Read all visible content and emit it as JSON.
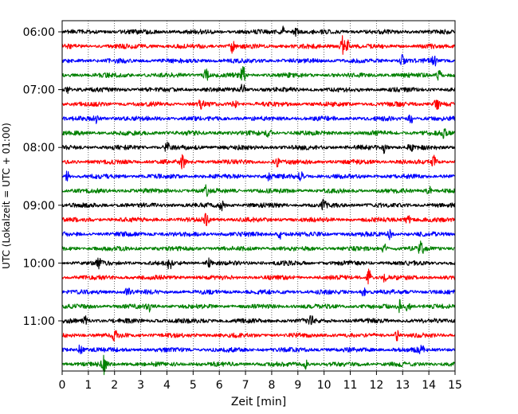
{
  "chart_data": {
    "type": "line",
    "title": "",
    "xlabel": "Zeit  [min]",
    "ylabel": "UTC (Lokalzeit = UTC + 01:00)",
    "xlim": [
      0,
      15
    ],
    "x_ticks": [
      "0",
      "1",
      "2",
      "3",
      "4",
      "5",
      "6",
      "7",
      "8",
      "9",
      "10",
      "11",
      "12",
      "13",
      "14",
      "15"
    ],
    "y_ticks": [
      "06:00",
      "07:00",
      "08:00",
      "09:00",
      "10:00",
      "11:00"
    ],
    "grid": "vertical dotted lines at each minute",
    "trace_minutes": 15,
    "traces": [
      {
        "start": "06:00",
        "color": "#000000",
        "events": [
          {
            "t": 8.4,
            "amp": 0.5
          },
          {
            "t": 8.9,
            "amp": 0.45
          }
        ]
      },
      {
        "start": "06:15",
        "color": "#ff0000",
        "events": [
          {
            "t": 6.5,
            "amp": 0.55
          },
          {
            "t": 10.7,
            "amp": 1.0
          },
          {
            "t": 10.9,
            "amp": 0.5
          }
        ]
      },
      {
        "start": "06:30",
        "color": "#0000ff",
        "events": [
          {
            "t": 13.0,
            "amp": 0.45
          },
          {
            "t": 14.2,
            "amp": 0.4
          }
        ]
      },
      {
        "start": "06:45",
        "color": "#008000",
        "events": [
          {
            "t": 5.5,
            "amp": 0.55
          },
          {
            "t": 6.9,
            "amp": 0.75
          },
          {
            "t": 14.4,
            "amp": 0.5
          }
        ]
      },
      {
        "start": "07:00",
        "color": "#000000",
        "events": [
          {
            "t": 0.2,
            "amp": 0.4
          },
          {
            "t": 6.9,
            "amp": 0.5
          }
        ]
      },
      {
        "start": "07:15",
        "color": "#ff0000",
        "events": [
          {
            "t": 5.3,
            "amp": 0.5
          },
          {
            "t": 6.6,
            "amp": 0.45
          },
          {
            "t": 14.3,
            "amp": 0.5
          }
        ]
      },
      {
        "start": "07:30",
        "color": "#0000ff",
        "events": [
          {
            "t": 1.3,
            "amp": 0.4
          },
          {
            "t": 13.3,
            "amp": 0.4
          }
        ]
      },
      {
        "start": "07:45",
        "color": "#008000",
        "events": [
          {
            "t": 7.9,
            "amp": 0.4
          },
          {
            "t": 14.6,
            "amp": 0.45
          }
        ]
      },
      {
        "start": "08:00",
        "color": "#000000",
        "events": [
          {
            "t": 4.0,
            "amp": 0.45
          },
          {
            "t": 12.3,
            "amp": 0.45
          },
          {
            "t": 13.3,
            "amp": 0.45
          }
        ]
      },
      {
        "start": "08:15",
        "color": "#ff0000",
        "events": [
          {
            "t": 4.6,
            "amp": 0.5
          },
          {
            "t": 8.2,
            "amp": 0.4
          },
          {
            "t": 14.2,
            "amp": 0.45
          }
        ]
      },
      {
        "start": "08:30",
        "color": "#0000ff",
        "events": [
          {
            "t": 0.2,
            "amp": 0.45
          },
          {
            "t": 7.9,
            "amp": 0.45
          },
          {
            "t": 9.1,
            "amp": 0.45
          }
        ]
      },
      {
        "start": "08:45",
        "color": "#008000",
        "events": [
          {
            "t": 5.5,
            "amp": 0.4
          },
          {
            "t": 14.0,
            "amp": 0.45
          }
        ]
      },
      {
        "start": "09:00",
        "color": "#000000",
        "events": [
          {
            "t": 6.1,
            "amp": 0.4
          },
          {
            "t": 10.0,
            "amp": 0.45
          }
        ]
      },
      {
        "start": "09:15",
        "color": "#ff0000",
        "events": [
          {
            "t": 5.5,
            "amp": 0.5
          },
          {
            "t": 13.2,
            "amp": 0.4
          }
        ]
      },
      {
        "start": "09:30",
        "color": "#0000ff",
        "events": [
          {
            "t": 8.3,
            "amp": 0.4
          },
          {
            "t": 12.5,
            "amp": 0.4
          }
        ]
      },
      {
        "start": "09:45",
        "color": "#008000",
        "events": [
          {
            "t": 12.3,
            "amp": 0.45
          },
          {
            "t": 13.7,
            "amp": 0.6
          }
        ]
      },
      {
        "start": "10:00",
        "color": "#000000",
        "events": [
          {
            "t": 1.4,
            "amp": 0.4
          },
          {
            "t": 4.1,
            "amp": 0.45
          },
          {
            "t": 5.6,
            "amp": 0.5
          }
        ]
      },
      {
        "start": "10:15",
        "color": "#ff0000",
        "events": [
          {
            "t": 11.7,
            "amp": 0.7
          },
          {
            "t": 12.3,
            "amp": 0.4
          }
        ]
      },
      {
        "start": "10:30",
        "color": "#0000ff",
        "events": [
          {
            "t": 2.5,
            "amp": 0.35
          },
          {
            "t": 11.5,
            "amp": 0.35
          }
        ]
      },
      {
        "start": "10:45",
        "color": "#008000",
        "events": [
          {
            "t": 3.3,
            "amp": 0.45
          },
          {
            "t": 12.9,
            "amp": 0.6
          },
          {
            "t": 13.2,
            "amp": 0.45
          }
        ]
      },
      {
        "start": "11:00",
        "color": "#000000",
        "events": [
          {
            "t": 0.9,
            "amp": 0.35
          },
          {
            "t": 9.5,
            "amp": 0.35
          }
        ]
      },
      {
        "start": "11:15",
        "color": "#ff0000",
        "events": [
          {
            "t": 2.0,
            "amp": 0.4
          },
          {
            "t": 12.8,
            "amp": 0.45
          }
        ]
      },
      {
        "start": "11:30",
        "color": "#0000ff",
        "events": [
          {
            "t": 0.7,
            "amp": 0.45
          },
          {
            "t": 13.7,
            "amp": 0.45
          }
        ]
      },
      {
        "start": "11:45",
        "color": "#008000",
        "events": [
          {
            "t": 1.6,
            "amp": 0.8
          },
          {
            "t": 9.3,
            "amp": 0.35
          }
        ]
      }
    ]
  }
}
